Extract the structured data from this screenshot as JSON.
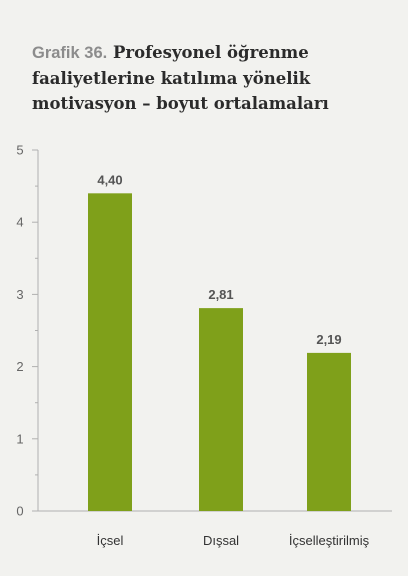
{
  "title": {
    "prefix": "Grafik 36.",
    "text": " Profesyonel öğrenme faaliyetlerine katılıma yönelik motivasyon – boyut ortalamaları"
  },
  "chart_data": {
    "type": "bar",
    "categories": [
      "İçsel",
      "Dışsal",
      "İçselleştirilmiş"
    ],
    "values": [
      4.4,
      2.81,
      2.19
    ],
    "value_labels": [
      "4,40",
      "2,81",
      "2,19"
    ],
    "y_ticks": [
      "0",
      "1",
      "2",
      "3",
      "4",
      "5"
    ],
    "ylim": [
      0,
      5
    ],
    "y_minor_step": 0.5,
    "bar_color": "#7fa01a",
    "axis_color": "#b0b0b0",
    "grid": false,
    "legend": false
  }
}
